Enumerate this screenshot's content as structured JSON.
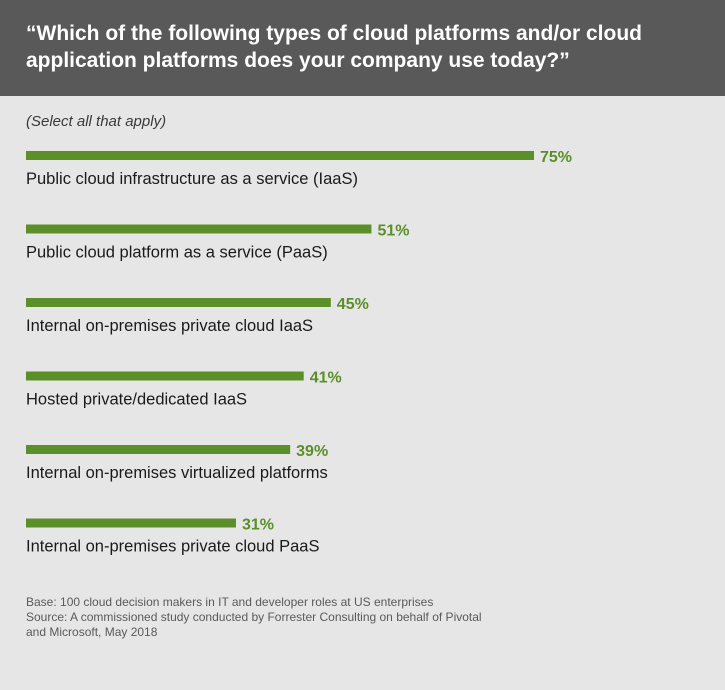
{
  "header": {
    "title": "“Which of the following types of cloud platforms and/or cloud application platforms does your company use today?”"
  },
  "subtitle": "(Select all that apply)",
  "colors": {
    "bar": "#5a8f29",
    "value_label": "#5a8f29",
    "header_bg": "#595959",
    "background": "#e6e6e6"
  },
  "chart_data": {
    "type": "bar",
    "orientation": "horizontal",
    "title": "“Which of the following types of cloud platforms and/or cloud application platforms does your company use today?”",
    "categories": [
      "Public cloud infrastructure as a service (IaaS)",
      "Public cloud platform as a service (PaaS)",
      "Internal on-premises private cloud IaaS",
      "Hosted private/dedicated IaaS",
      "Internal on-premises virtualized platforms",
      "Internal on-premises private cloud PaaS"
    ],
    "values": [
      75,
      51,
      45,
      41,
      39,
      31
    ],
    "value_labels": [
      "75%",
      "51%",
      "45%",
      "41%",
      "39%",
      "31%"
    ],
    "unit": "%",
    "xlim": [
      0,
      100
    ],
    "grid": false,
    "legend": "none"
  },
  "footnote": {
    "line1": "Base: 100 cloud decision makers in IT and developer roles at US enterprises",
    "line2": "Source: A commissioned study conducted by Forrester Consulting on behalf of Pivotal",
    "line3": "and Microsoft, May 2018"
  }
}
